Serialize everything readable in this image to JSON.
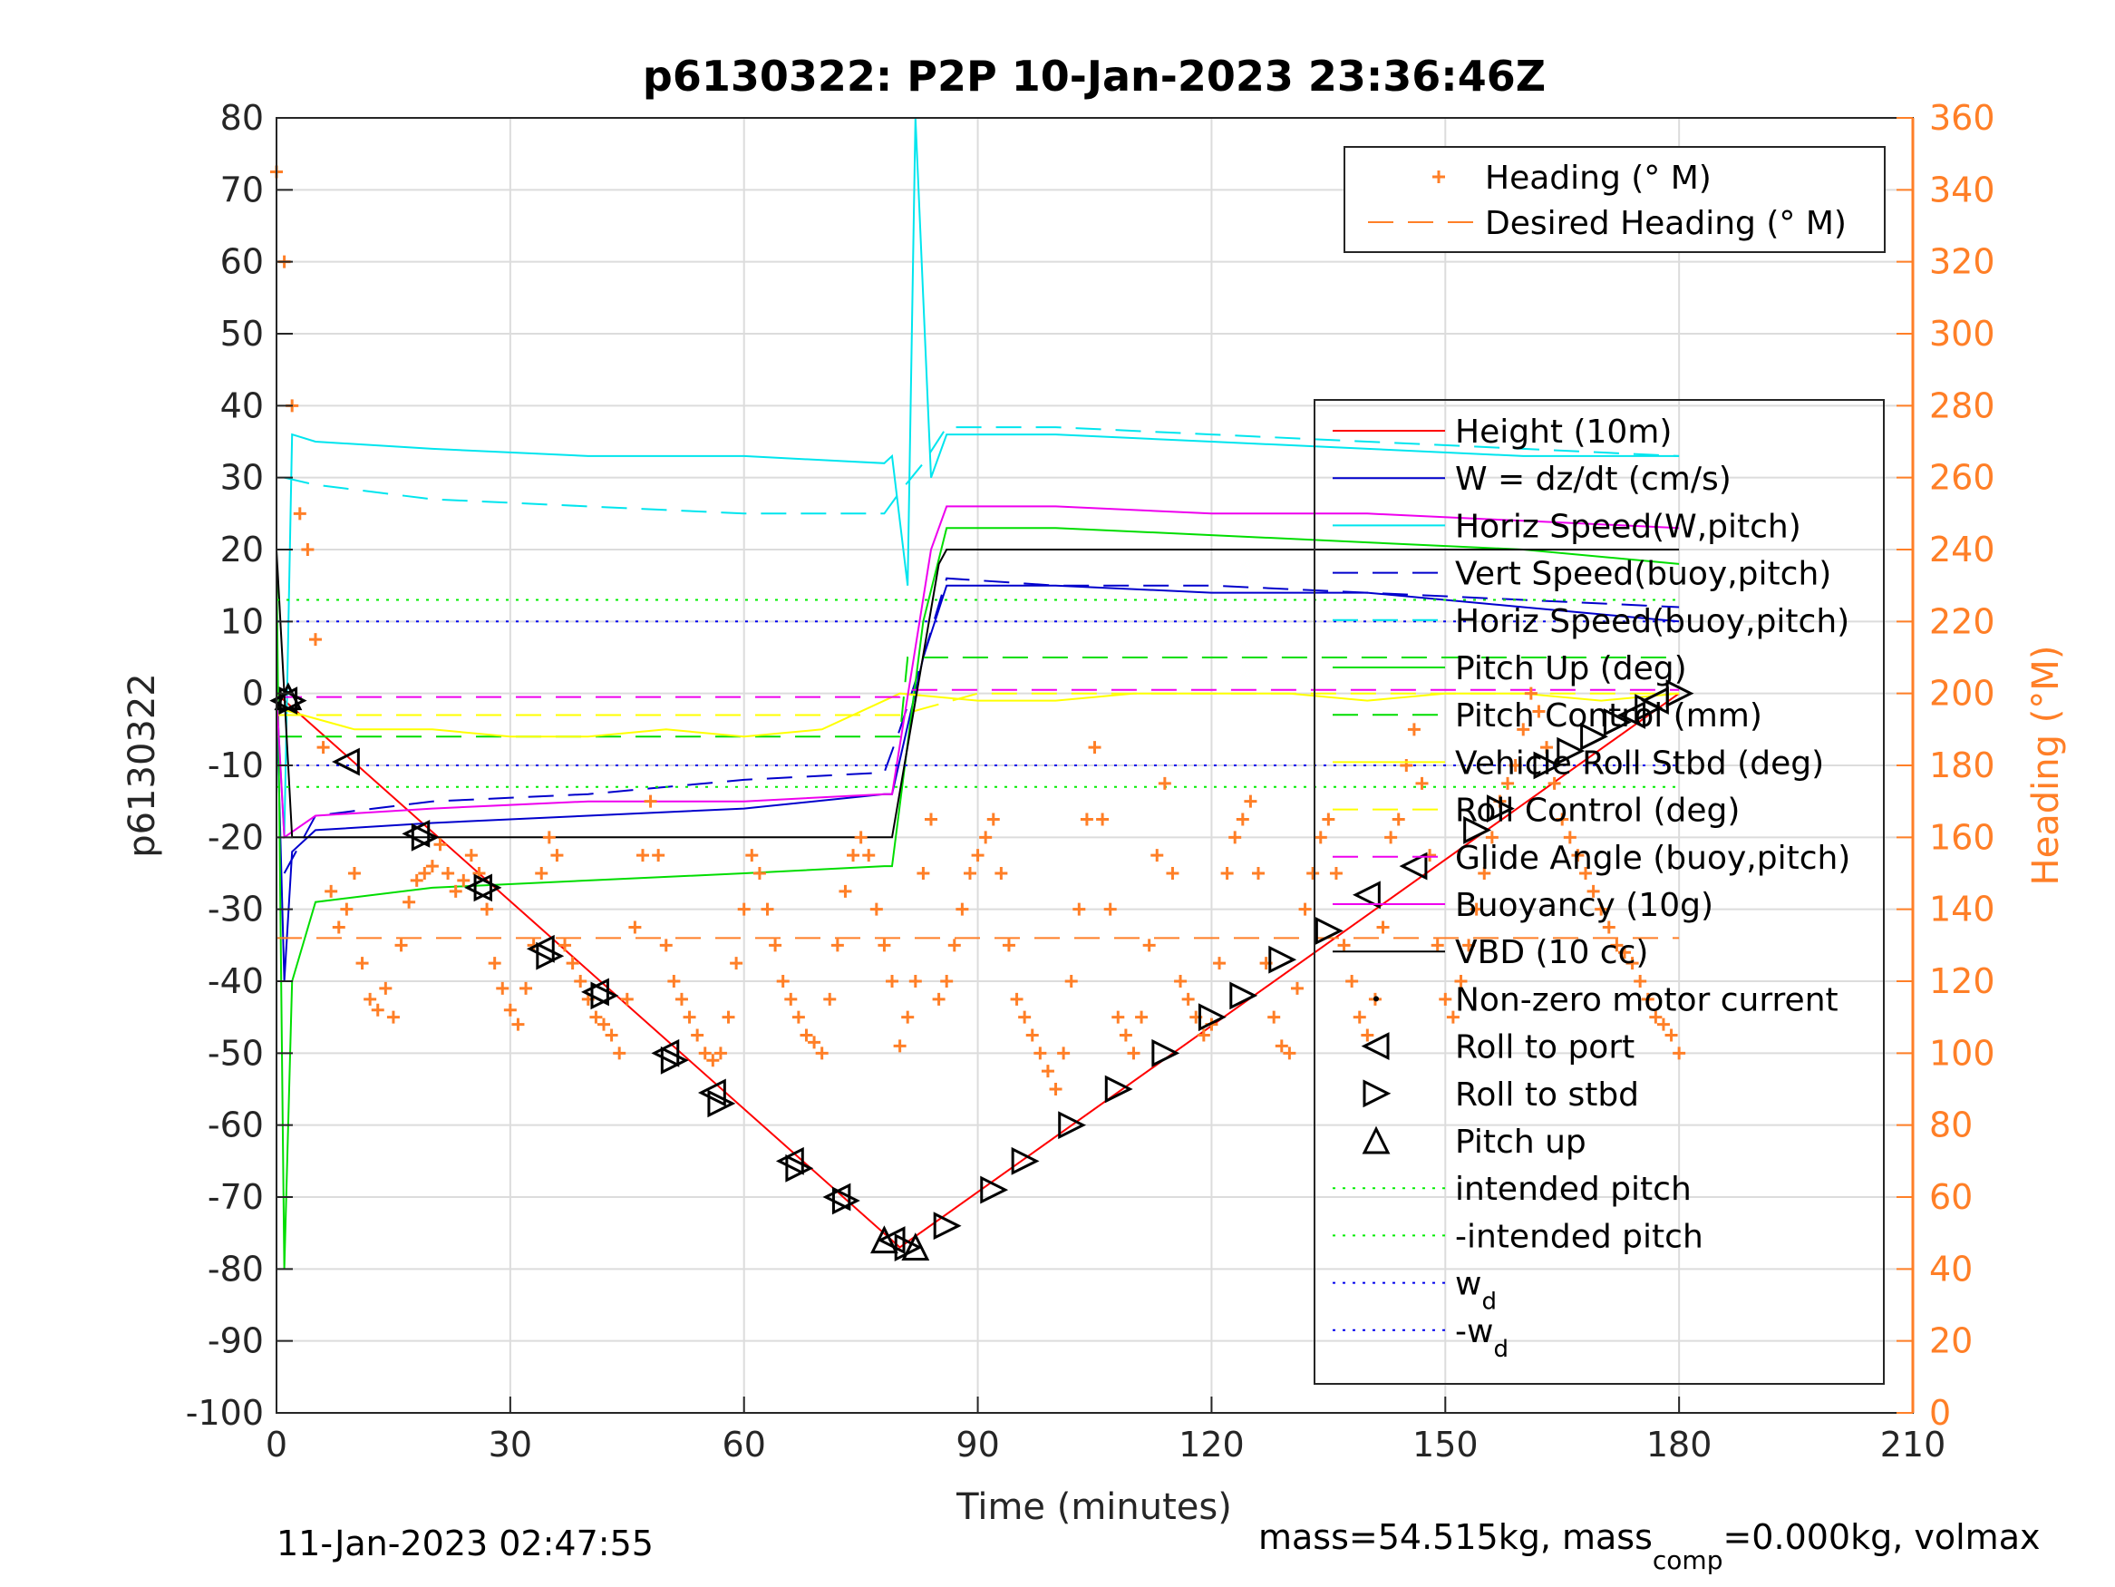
{
  "chart_data": {
    "type": "line",
    "title": "p6130322: P2P 10-Jan-2023 23:36:46Z",
    "xlabel": "Time (minutes)",
    "ylabel": "p6130322",
    "ylabel_right": "Heading (°M)",
    "xlim": [
      0,
      210
    ],
    "ylim": [
      -100,
      80
    ],
    "ylim_right": [
      0,
      360
    ],
    "x_ticks": [
      "0",
      "30",
      "60",
      "90",
      "120",
      "150",
      "180",
      "210"
    ],
    "y_ticks": [
      "80",
      "70",
      "60",
      "50",
      "40",
      "30",
      "20",
      "10",
      "0",
      "-10",
      "-20",
      "-30",
      "-40",
      "-50",
      "-60",
      "-70",
      "-80",
      "-90",
      "-100"
    ],
    "y_ticks_right": [
      "360",
      "340",
      "320",
      "300",
      "280",
      "260",
      "240",
      "220",
      "200",
      "180",
      "160",
      "140",
      "120",
      "100",
      "80",
      "60",
      "40",
      "20",
      "0"
    ],
    "grid": true,
    "legend_top_right": [
      {
        "label": "Heading (° M)",
        "color": "#ff7f27",
        "style": "plus"
      },
      {
        "label": "Desired Heading (° M)",
        "color": "#ff7f27",
        "style": "dash"
      }
    ],
    "legend_main": [
      {
        "label": "Height (10m)",
        "color": "#ff0000",
        "style": "solid"
      },
      {
        "label": "W = dz/dt (cm/s)",
        "color": "#0000cc",
        "style": "solid"
      },
      {
        "label": "Horiz Speed(W,pitch)",
        "color": "#00e5ee",
        "style": "solid"
      },
      {
        "label": "Vert Speed(buoy,pitch)",
        "color": "#0000cc",
        "style": "dash"
      },
      {
        "label": "Horiz Speed(buoy,pitch)",
        "color": "#00e5ee",
        "style": "dash"
      },
      {
        "label": "Pitch Up (deg)",
        "color": "#00dd00",
        "style": "solid"
      },
      {
        "label": "Pitch Control (mm)",
        "color": "#00dd00",
        "style": "dash"
      },
      {
        "label": "Vehicle Roll Stbd (deg)",
        "color": "#ffff00",
        "style": "solid"
      },
      {
        "label": "Roll Control (deg)",
        "color": "#ffff00",
        "style": "dash"
      },
      {
        "label": "Glide Angle (buoy,pitch)",
        "color": "#ee00ee",
        "style": "dash"
      },
      {
        "label": "Buoyancy (10g)",
        "color": "#ee00ee",
        "style": "solid"
      },
      {
        "label": "VBD (10 cc)",
        "color": "#000000",
        "style": "solid"
      },
      {
        "label": "Non-zero motor current",
        "color": "#000000",
        "style": "dot"
      },
      {
        "label": "Roll to port",
        "color": "#000000",
        "style": "tri-left"
      },
      {
        "label": "Roll to stbd",
        "color": "#000000",
        "style": "tri-right"
      },
      {
        "label": "Pitch up",
        "color": "#000000",
        "style": "tri-up"
      },
      {
        "label": "intended pitch",
        "color": "#00ee00",
        "style": "dotline"
      },
      {
        "label": "-intended pitch",
        "color": "#00ee00",
        "style": "dotline"
      },
      {
        "label": "w",
        "sub": "d",
        "color": "#0000ee",
        "style": "dotline"
      },
      {
        "label": "-w",
        "sub": "d",
        "color": "#0000ee",
        "style": "dotline"
      }
    ],
    "series": [
      {
        "name": "Height (10m)",
        "x": [
          0,
          80,
          180
        ],
        "y": [
          0,
          -77,
          0
        ]
      },
      {
        "name": "W = dz/dt (cm/s)",
        "x": [
          0,
          1,
          2,
          5,
          20,
          40,
          60,
          78,
          79,
          83,
          86,
          100,
          120,
          140,
          160,
          180
        ],
        "y": [
          0,
          -40,
          -22,
          -19,
          -18,
          -17,
          -16,
          -14,
          -14,
          5,
          15,
          15,
          14,
          14,
          12,
          10
        ]
      },
      {
        "name": "Horiz Speed(W,pitch)",
        "x": [
          0,
          1,
          2,
          5,
          20,
          40,
          60,
          78,
          79,
          81,
          82,
          84,
          86,
          100,
          120,
          140,
          160,
          180
        ],
        "y": [
          0,
          -20,
          36,
          35,
          34,
          33,
          33,
          32,
          33,
          15,
          80,
          30,
          36,
          36,
          35,
          34,
          33,
          33
        ]
      },
      {
        "name": "Vert Speed(buoy,pitch)",
        "x": [
          1,
          5,
          20,
          40,
          60,
          78,
          80,
          83,
          86,
          100,
          120,
          140,
          160,
          180
        ],
        "y": [
          -25,
          -17,
          -15,
          -14,
          -12,
          -11,
          -5,
          5,
          16,
          15,
          15,
          14,
          13,
          12
        ]
      },
      {
        "name": "Horiz Speed(buoy,pitch)",
        "x": [
          1,
          5,
          20,
          40,
          60,
          78,
          80,
          83,
          86,
          100,
          120,
          140,
          160,
          180
        ],
        "y": [
          30,
          29,
          27,
          26,
          25,
          25,
          28,
          32,
          37,
          37,
          36,
          35,
          34,
          33
        ]
      },
      {
        "name": "Pitch Up (deg)",
        "x": [
          0,
          1,
          2,
          5,
          20,
          40,
          60,
          78,
          79,
          83,
          86,
          100,
          120,
          140,
          160,
          180
        ],
        "y": [
          20,
          -80,
          -40,
          -29,
          -27,
          -26,
          -25,
          -24,
          -24,
          10,
          23,
          23,
          22,
          21,
          20,
          18
        ]
      },
      {
        "name": "Pitch Control (mm)",
        "x": [
          0,
          80,
          81,
          180
        ],
        "y": [
          -6,
          -6,
          5,
          5
        ]
      },
      {
        "name": "Vehicle Roll Stbd (deg)",
        "x": [
          0,
          10,
          20,
          30,
          40,
          50,
          60,
          70,
          80,
          90,
          100,
          110,
          120,
          130,
          140,
          150,
          160,
          170,
          180
        ],
        "y": [
          -2,
          -5,
          -5,
          -6,
          -6,
          -5,
          -6,
          -5,
          0,
          -1,
          -1,
          0,
          0,
          0,
          -1,
          0,
          0,
          -1,
          0
        ]
      },
      {
        "name": "Roll Control (deg)",
        "x": [
          0,
          80,
          90,
          180
        ],
        "y": [
          -3,
          -3,
          0,
          0
        ]
      },
      {
        "name": "Glide Angle (buoy,pitch)",
        "x": [
          0,
          80,
          81,
          180
        ],
        "y": [
          -0.5,
          -0.5,
          0.5,
          0.5
        ]
      },
      {
        "name": "Buoyancy (10g)",
        "x": [
          0,
          1,
          5,
          20,
          40,
          60,
          78,
          79,
          84,
          86,
          100,
          120,
          140,
          160,
          180
        ],
        "y": [
          0,
          -20,
          -17,
          -16,
          -15,
          -15,
          -14,
          -14,
          20,
          26,
          26,
          25,
          25,
          24,
          23
        ]
      },
      {
        "name": "VBD (10 cc)",
        "x": [
          0,
          1,
          2,
          78,
          79,
          85,
          86,
          180
        ],
        "y": [
          20,
          0,
          -20,
          -20,
          -20,
          18,
          20,
          20
        ]
      },
      {
        "name": "intended pitch",
        "x": [
          0,
          180
        ],
        "y": [
          13,
          13
        ]
      },
      {
        "name": "-intended pitch",
        "x": [
          0,
          180
        ],
        "y": [
          -13,
          -13
        ]
      },
      {
        "name": "w_d",
        "x": [
          0,
          180
        ],
        "y": [
          10,
          10
        ]
      },
      {
        "name": "-w_d",
        "x": [
          0,
          180
        ],
        "y": [
          -10,
          -10
        ]
      },
      {
        "name": "Desired Heading (° M)",
        "axis": "right",
        "x": [
          0,
          180
        ],
        "y": [
          132,
          132
        ]
      },
      {
        "name": "Heading (° M)",
        "axis": "right",
        "x": [
          0,
          1,
          2,
          3,
          4,
          5,
          6,
          7,
          8,
          9,
          10,
          11,
          12,
          13,
          14,
          15,
          16,
          17,
          18,
          19,
          20,
          21,
          22,
          23,
          24,
          25,
          26,
          27,
          28,
          29,
          30,
          31,
          32,
          33,
          34,
          35,
          36,
          37,
          38,
          39,
          40,
          41,
          42,
          43,
          44,
          45,
          46,
          47,
          48,
          49,
          50,
          51,
          52,
          53,
          54,
          55,
          56,
          57,
          58,
          59,
          60,
          61,
          62,
          63,
          64,
          65,
          66,
          67,
          68,
          69,
          70,
          71,
          72,
          73,
          74,
          75,
          76,
          77,
          78,
          79,
          80,
          81,
          82,
          83,
          84,
          85,
          86,
          87,
          88,
          89,
          90,
          91,
          92,
          93,
          94,
          95,
          96,
          97,
          98,
          99,
          100,
          101,
          102,
          103,
          104,
          105,
          106,
          107,
          108,
          109,
          110,
          111,
          112,
          113,
          114,
          115,
          116,
          117,
          118,
          119,
          120,
          121,
          122,
          123,
          124,
          125,
          126,
          127,
          128,
          129,
          130,
          131,
          132,
          133,
          134,
          135,
          136,
          137,
          138,
          139,
          140,
          141,
          142,
          143,
          144,
          145,
          146,
          147,
          148,
          149,
          150,
          151,
          152,
          153,
          154,
          155,
          156,
          157,
          158,
          159,
          160,
          161,
          162,
          163,
          164,
          165,
          166,
          167,
          168,
          169,
          170,
          171,
          172,
          173,
          174,
          175,
          176,
          177,
          178,
          179,
          180
        ],
        "y": [
          345,
          320,
          280,
          250,
          240,
          215,
          185,
          145,
          135,
          140,
          150,
          125,
          115,
          112,
          118,
          110,
          130,
          142,
          148,
          150,
          152,
          158,
          150,
          145,
          148,
          155,
          150,
          140,
          125,
          118,
          112,
          108,
          118,
          130,
          150,
          160,
          155,
          130,
          125,
          120,
          115,
          110,
          108,
          105,
          100,
          115,
          135,
          155,
          170,
          155,
          130,
          120,
          115,
          110,
          105,
          100,
          98,
          100,
          110,
          125,
          140,
          155,
          150,
          140,
          130,
          120,
          115,
          110,
          105,
          103,
          100,
          115,
          130,
          145,
          155,
          160,
          155,
          140,
          130,
          120,
          102,
          110,
          120,
          150,
          165,
          115,
          120,
          130,
          140,
          150,
          155,
          160,
          165,
          150,
          130,
          115,
          110,
          105,
          100,
          95,
          90,
          100,
          120,
          140,
          165,
          185,
          165,
          140,
          110,
          105,
          100,
          110,
          130,
          155,
          175,
          150,
          120,
          115,
          110,
          105,
          108,
          125,
          150,
          160,
          165,
          170,
          150,
          125,
          110,
          102,
          100,
          118,
          140,
          150,
          160,
          165,
          150,
          130,
          120,
          110,
          105,
          115,
          135,
          160,
          165,
          180,
          190,
          175,
          155,
          130,
          115,
          110,
          120,
          130,
          140,
          150,
          160,
          170,
          175,
          180,
          190,
          200,
          195,
          185,
          175,
          165,
          160,
          155,
          150,
          145,
          140,
          135,
          130,
          128,
          125,
          120,
          115,
          110,
          108,
          105,
          100
        ]
      }
    ],
    "markers": {
      "roll_to_port": [
        [
          1,
          -1
        ],
        [
          9,
          -9.5
        ],
        [
          18,
          -19.5
        ],
        [
          26,
          -27
        ],
        [
          34,
          -35.5
        ],
        [
          41,
          -41.5
        ],
        [
          50,
          -50
        ],
        [
          56,
          -55.5
        ],
        [
          66,
          -65
        ],
        [
          72,
          -70
        ],
        [
          79,
          -76
        ],
        [
          140,
          -28
        ],
        [
          146,
          -24
        ],
        [
          174,
          -3
        ],
        [
          177,
          -1
        ]
      ],
      "roll_to_stbd": [
        [
          2,
          -1
        ],
        [
          19,
          -20
        ],
        [
          27,
          -27
        ],
        [
          35,
          -36.5
        ],
        [
          42,
          -42
        ],
        [
          51,
          -51
        ],
        [
          57,
          -57
        ],
        [
          67,
          -66
        ],
        [
          73,
          -70.5
        ],
        [
          81,
          -77
        ],
        [
          86,
          -74
        ],
        [
          92,
          -69
        ],
        [
          96,
          -65
        ],
        [
          102,
          -60
        ],
        [
          108,
          -55
        ],
        [
          114,
          -50
        ],
        [
          120,
          -45
        ],
        [
          124,
          -42
        ],
        [
          129,
          -37
        ],
        [
          135,
          -33
        ],
        [
          154,
          -19
        ],
        [
          157,
          -16
        ],
        [
          163,
          -10
        ],
        [
          166,
          -8
        ],
        [
          169,
          -6
        ],
        [
          172,
          -4
        ],
        [
          176,
          -2
        ],
        [
          180,
          0
        ]
      ],
      "pitch_up": [
        [
          1.5,
          -0.5
        ],
        [
          78,
          -76
        ],
        [
          82,
          -77
        ]
      ]
    },
    "footer_left": "11-Jan-2023 02:47:55",
    "footer_right_prefix": "mass=54.515kg, mass",
    "footer_right_sub": "comp",
    "footer_right_suffix": "=0.000kg, volmax"
  }
}
